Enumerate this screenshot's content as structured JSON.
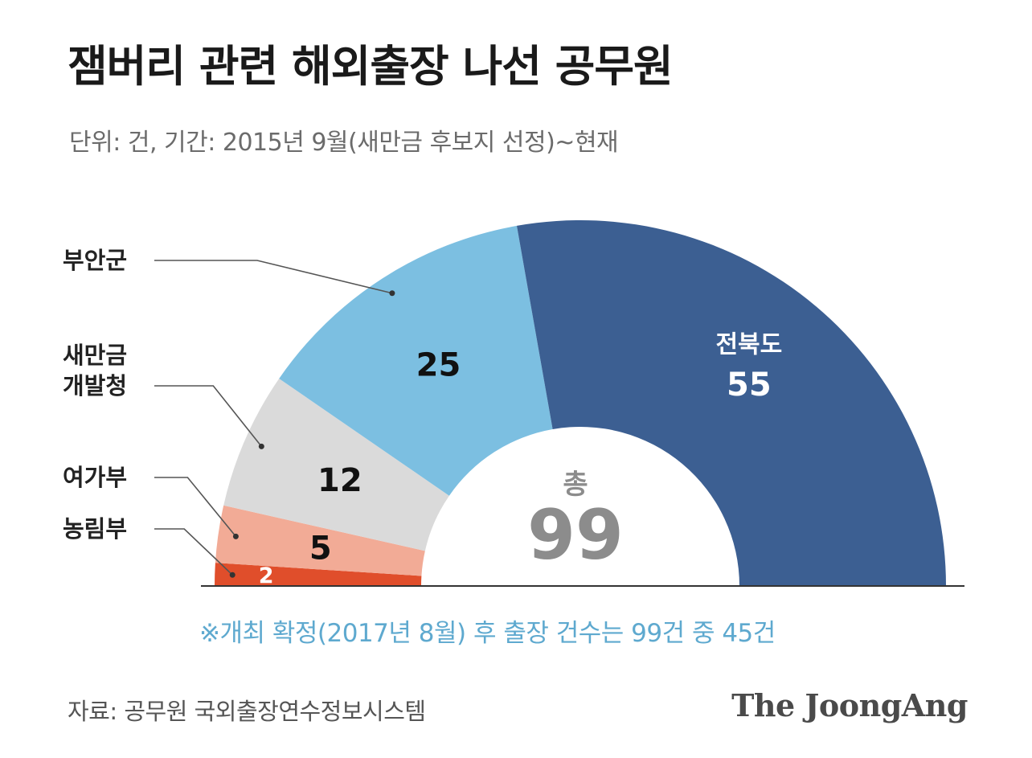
{
  "header": {
    "title": "잼버리 관련 해외출장 나선 공무원",
    "subtitle": "단위: 건, 기간: 2015년 9월(새만금 후보지 선정)~현재"
  },
  "footer": {
    "note": "※개최 확정(2017년 8월) 후 출장 건수는 99건 중 45건",
    "source": "자료: 공무원 국외출장연수정보시스템",
    "logo": "The JoongAng"
  },
  "chart_data": {
    "type": "pie",
    "layout": "half-donut",
    "title": "잼버리 관련 해외출장 나선 공무원",
    "subtitle": "단위: 건, 기간: 2015년 9월(새만금 후보지 선정)~현재",
    "center_label": "총",
    "total": "99",
    "slices": [
      {
        "name": "농림부",
        "value": 2,
        "color": "#e04e2b",
        "label_lines": [
          "농림부"
        ]
      },
      {
        "name": "여가부",
        "value": 5,
        "color": "#f2ab96",
        "label_lines": [
          "여가부"
        ]
      },
      {
        "name": "새만금 개발청",
        "value": 12,
        "color": "#dadada",
        "label_lines": [
          "새만금",
          "개발청"
        ]
      },
      {
        "name": "부안군",
        "value": 25,
        "color": "#7cbfe1",
        "label_lines": [
          "부안군"
        ]
      },
      {
        "name": "전북도",
        "value": 55,
        "color": "#3c5f92",
        "label_lines": [
          "전북도"
        ]
      }
    ],
    "annotation": "※개최 확정(2017년 8월) 후 출장 건수는 99건 중 45건"
  }
}
